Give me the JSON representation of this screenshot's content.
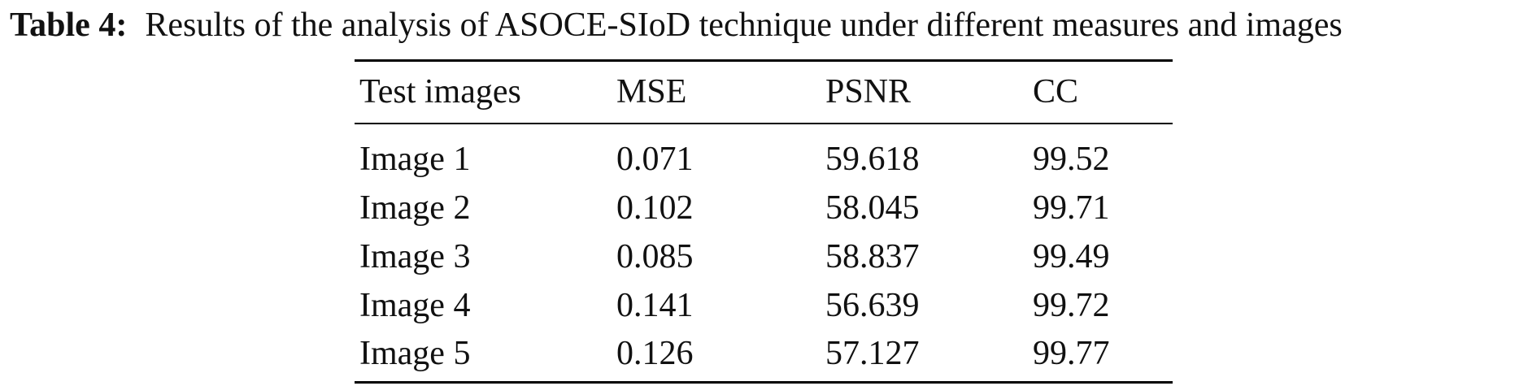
{
  "caption": {
    "label": "Table 4:",
    "text": "Results of the analysis of ASOCE-SIoD technique under different measures and images"
  },
  "table": {
    "headers": [
      "Test images",
      "MSE",
      "PSNR",
      "CC"
    ],
    "rows": [
      [
        "Image 1",
        "0.071",
        "59.618",
        "99.52"
      ],
      [
        "Image 2",
        "0.102",
        "58.045",
        "99.71"
      ],
      [
        "Image 3",
        "0.085",
        "58.837",
        "99.49"
      ],
      [
        "Image 4",
        "0.141",
        "56.639",
        "99.72"
      ],
      [
        "Image 5",
        "0.126",
        "57.127",
        "99.77"
      ]
    ]
  }
}
